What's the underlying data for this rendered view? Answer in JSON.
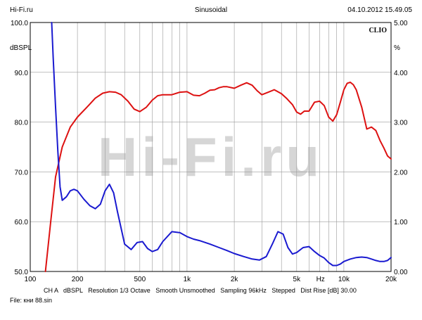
{
  "header": {
    "left": "Hi-Fi.ru",
    "center": "Sinusoidal",
    "right": "04.10.2012 15.49.05"
  },
  "brand": "CLIO",
  "watermark": "Hi-Fi.ru",
  "chart_data": {
    "type": "line",
    "x_scale": "log",
    "xlim": [
      100,
      20000
    ],
    "x_tick_labels": [
      "100",
      "200",
      "500",
      "1k",
      "2k",
      "5k",
      "Hz",
      "10k",
      "20k"
    ],
    "y_left": {
      "label": "dBSPL",
      "ylim": [
        50,
        100
      ],
      "tick_labels": [
        "100.0",
        "90.0",
        "80.0",
        "70.0",
        "60.0",
        "50.0"
      ]
    },
    "y_right": {
      "label": "%",
      "ylim": [
        0,
        5
      ],
      "tick_labels": [
        "5.00",
        "4.00",
        "3.00",
        "2.00",
        "1.00",
        "0.00"
      ]
    },
    "grid": true,
    "series": [
      {
        "axis": "left",
        "color": "#dd1111",
        "x": [
          125,
          135,
          145,
          160,
          180,
          200,
          230,
          260,
          290,
          320,
          350,
          380,
          420,
          460,
          500,
          550,
          600,
          650,
          700,
          800,
          900,
          1000,
          1100,
          1200,
          1300,
          1400,
          1500,
          1600,
          1700,
          1800,
          2000,
          2200,
          2400,
          2600,
          2800,
          3000,
          3300,
          3600,
          4000,
          4300,
          4700,
          5000,
          5300,
          5600,
          6000,
          6500,
          7000,
          7500,
          8000,
          8500,
          9000,
          9500,
          10000,
          10500,
          11000,
          11500,
          12000,
          13000,
          14000,
          15000,
          16000,
          17000,
          18000,
          19000,
          20000
        ],
        "values": [
          50,
          60,
          69,
          75,
          79,
          81,
          83,
          84.8,
          85.8,
          86.1,
          86,
          85.5,
          84.2,
          82.6,
          82.1,
          83,
          84.4,
          85.3,
          85.5,
          85.5,
          86,
          86.1,
          85.4,
          85.3,
          85.8,
          86.4,
          86.5,
          86.9,
          87.1,
          87.1,
          86.8,
          87.4,
          87.9,
          87.4,
          86.3,
          85.5,
          86,
          86.5,
          85.7,
          84.8,
          83.5,
          82,
          81.6,
          82.2,
          82.2,
          84,
          84.2,
          83.3,
          81,
          80.2,
          81.5,
          84,
          86.5,
          87.8,
          88,
          87.5,
          86.5,
          83,
          78.6,
          79,
          78.3,
          76.3,
          74.8,
          73.2,
          72.6
        ]
      },
      {
        "axis": "right",
        "color": "#1a1ad0",
        "x": [
          137,
          140,
          145,
          150,
          155,
          160,
          170,
          180,
          190,
          200,
          220,
          240,
          260,
          280,
          300,
          320,
          340,
          360,
          400,
          440,
          480,
          520,
          560,
          600,
          650,
          700,
          800,
          900,
          1000,
          1100,
          1200,
          1400,
          1600,
          1800,
          2000,
          2300,
          2600,
          2900,
          3200,
          3500,
          3800,
          4100,
          4400,
          4700,
          5000,
          5500,
          6000,
          6500,
          7000,
          7500,
          8000,
          8500,
          9000,
          9500,
          10000,
          11000,
          12000,
          13000,
          14000,
          15000,
          16000,
          17000,
          18000,
          19000,
          20000
        ],
        "values": [
          5,
          4.3,
          3.3,
          2.4,
          1.7,
          1.43,
          1.5,
          1.62,
          1.65,
          1.62,
          1.45,
          1.32,
          1.26,
          1.35,
          1.62,
          1.75,
          1.58,
          1.2,
          0.55,
          0.44,
          0.58,
          0.6,
          0.46,
          0.4,
          0.44,
          0.6,
          0.8,
          0.78,
          0.7,
          0.65,
          0.62,
          0.55,
          0.48,
          0.42,
          0.36,
          0.3,
          0.25,
          0.23,
          0.3,
          0.55,
          0.8,
          0.75,
          0.48,
          0.35,
          0.38,
          0.48,
          0.5,
          0.4,
          0.32,
          0.27,
          0.18,
          0.12,
          0.12,
          0.15,
          0.2,
          0.25,
          0.28,
          0.29,
          0.28,
          0.25,
          0.22,
          0.2,
          0.2,
          0.22,
          0.28
        ]
      }
    ]
  },
  "footer": {
    "line1": "CH A   dBSPL   Resolution 1/3 Octave   Smooth Unsmoothed   Sampling 96kHz   Stepped   Dist Rise [dB] 30.00",
    "line2": "File: кни 88.sin"
  }
}
